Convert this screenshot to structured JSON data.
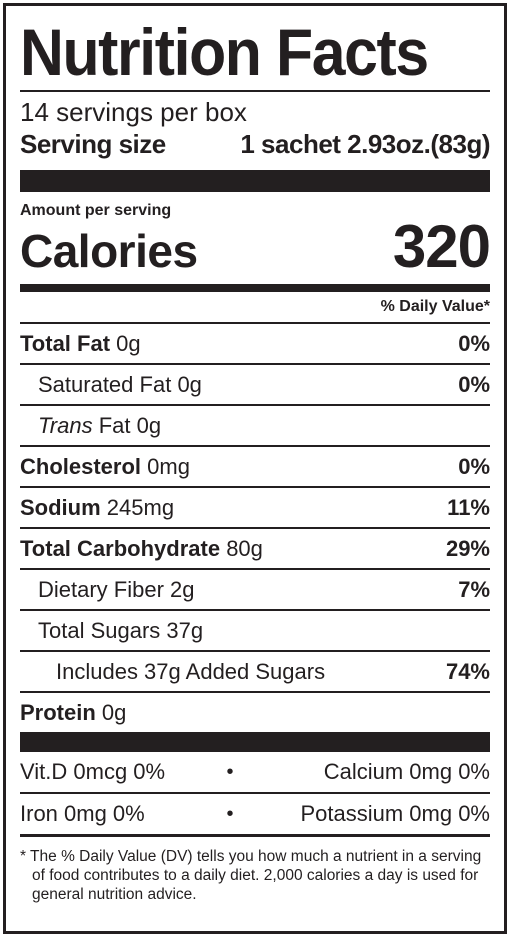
{
  "label": {
    "title": "Nutrition Facts",
    "servings_per_container": "14 servings per box",
    "serving_size_label": "Serving size",
    "serving_size_value": "1 sachet 2.93oz.(83g)",
    "amount_per_serving": "Amount per serving",
    "calories_label": "Calories",
    "calories_value": "320",
    "daily_value_header": "% Daily Value*"
  },
  "nutrients": {
    "total_fat": {
      "name": "Total Fat",
      "amount": "0g",
      "dv": "0%"
    },
    "saturated_fat": {
      "name": "Saturated Fat",
      "amount": "0g",
      "dv": "0%"
    },
    "trans_fat": {
      "name_italic": "Trans",
      "name_rest": "Fat",
      "amount": "0g",
      "dv": ""
    },
    "cholesterol": {
      "name": "Cholesterol",
      "amount": "0mg",
      "dv": "0%"
    },
    "sodium": {
      "name": "Sodium",
      "amount": "245mg",
      "dv": "11%"
    },
    "total_carbohydrate": {
      "name": "Total Carbohydrate",
      "amount": "80g",
      "dv": "29%"
    },
    "dietary_fiber": {
      "name": "Dietary Fiber",
      "amount": "2g",
      "dv": "7%"
    },
    "total_sugars": {
      "name": "Total Sugars",
      "amount": "37g",
      "dv": ""
    },
    "added_sugars": {
      "name": "Includes 37g Added Sugars",
      "dv": "74%"
    },
    "protein": {
      "name": "Protein",
      "amount": "0g"
    }
  },
  "vitamins": {
    "row1_left": "Vit.D 0mcg 0%",
    "row1_right": "Calcium 0mg 0%",
    "row2_left": "Iron 0mg 0%",
    "row2_right": "Potassium 0mg 0%",
    "bullet": "•"
  },
  "footnote": "* The % Daily Value (DV) tells you how much a nutrient in a serving of food contributes to a daily diet. 2,000 calories a day is used for general nutrition advice."
}
